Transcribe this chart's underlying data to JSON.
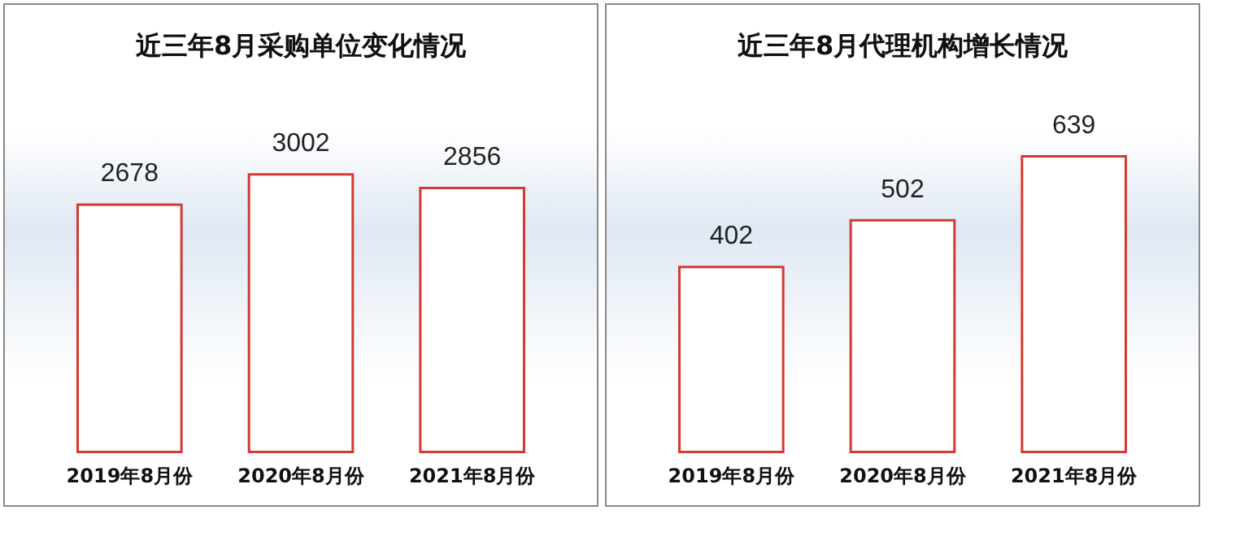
{
  "chart_data": [
    {
      "type": "bar",
      "title": "近三年8月采购单位变化情况",
      "categories": [
        "2019年8月份",
        "2020年8月份",
        "2021年8月份"
      ],
      "values": [
        2678,
        3002,
        2856
      ],
      "color": "#d33a33",
      "data_labels": true
    },
    {
      "type": "bar",
      "title": "近三年8月代理机构增长情况",
      "categories": [
        "2019年8月份",
        "2020年8月份",
        "2021年8月份"
      ],
      "values": [
        402,
        502,
        639
      ],
      "color": "#d33a33",
      "data_labels": true
    }
  ]
}
